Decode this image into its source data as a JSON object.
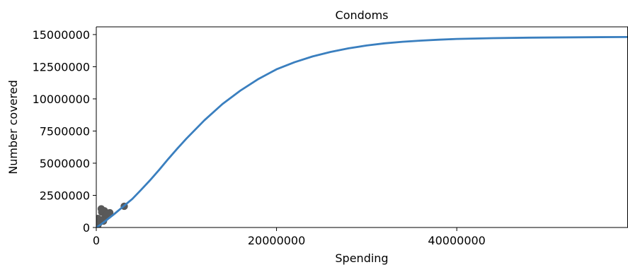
{
  "chart_data": {
    "type": "scatter",
    "title": "Condoms",
    "xlabel": "Spending",
    "ylabel": "Number covered",
    "xlim": [
      0,
      59000000
    ],
    "ylim": [
      0,
      15600000
    ],
    "x_ticks": [
      0,
      20000000,
      40000000
    ],
    "x_tick_labels": [
      "0",
      "20000000",
      "40000000"
    ],
    "y_ticks": [
      0,
      2500000,
      5000000,
      7500000,
      10000000,
      12500000,
      15000000
    ],
    "y_tick_labels": [
      "0",
      "2500000",
      "5000000",
      "7500000",
      "10000000",
      "12500000",
      "15000000"
    ],
    "grid": false,
    "series": [
      {
        "type": "scatter",
        "color": "#595959",
        "points": [
          [
            0,
            0
          ],
          [
            50000,
            20000
          ],
          [
            100000,
            200000
          ],
          [
            150000,
            100000
          ],
          [
            200000,
            700000
          ],
          [
            250000,
            300000
          ],
          [
            300000,
            350000
          ],
          [
            400000,
            450000
          ],
          [
            500000,
            500000
          ],
          [
            550000,
            1450000
          ],
          [
            600000,
            1200000
          ],
          [
            650000,
            550000
          ],
          [
            700000,
            600000
          ],
          [
            800000,
            500000
          ],
          [
            900000,
            1300000
          ],
          [
            1000000,
            900000
          ],
          [
            1100000,
            1000000
          ],
          [
            1200000,
            1050000
          ],
          [
            1500000,
            1150000
          ],
          [
            3100000,
            1650000
          ]
        ]
      },
      {
        "type": "line",
        "color": "#3a7fbf",
        "points": [
          [
            0,
            0
          ],
          [
            500000,
            230000
          ],
          [
            1000000,
            500000
          ],
          [
            2000000,
            1050000
          ],
          [
            3000000,
            1640000
          ],
          [
            4000000,
            2220000
          ],
          [
            5000000,
            2950000
          ],
          [
            6000000,
            3700000
          ],
          [
            7000000,
            4500000
          ],
          [
            8000000,
            5340000
          ],
          [
            9000000,
            6140000
          ],
          [
            10000000,
            6910000
          ],
          [
            12000000,
            8340000
          ],
          [
            14000000,
            9600000
          ],
          [
            16000000,
            10650000
          ],
          [
            18000000,
            11550000
          ],
          [
            20000000,
            12300000
          ],
          [
            22000000,
            12850000
          ],
          [
            24000000,
            13300000
          ],
          [
            26000000,
            13650000
          ],
          [
            28000000,
            13930000
          ],
          [
            30000000,
            14150000
          ],
          [
            32000000,
            14320000
          ],
          [
            34000000,
            14440000
          ],
          [
            36000000,
            14530000
          ],
          [
            38000000,
            14600000
          ],
          [
            40000000,
            14660000
          ],
          [
            44000000,
            14720000
          ],
          [
            48000000,
            14760000
          ],
          [
            52000000,
            14780000
          ],
          [
            56000000,
            14800000
          ],
          [
            59000000,
            14810000
          ]
        ]
      }
    ]
  }
}
